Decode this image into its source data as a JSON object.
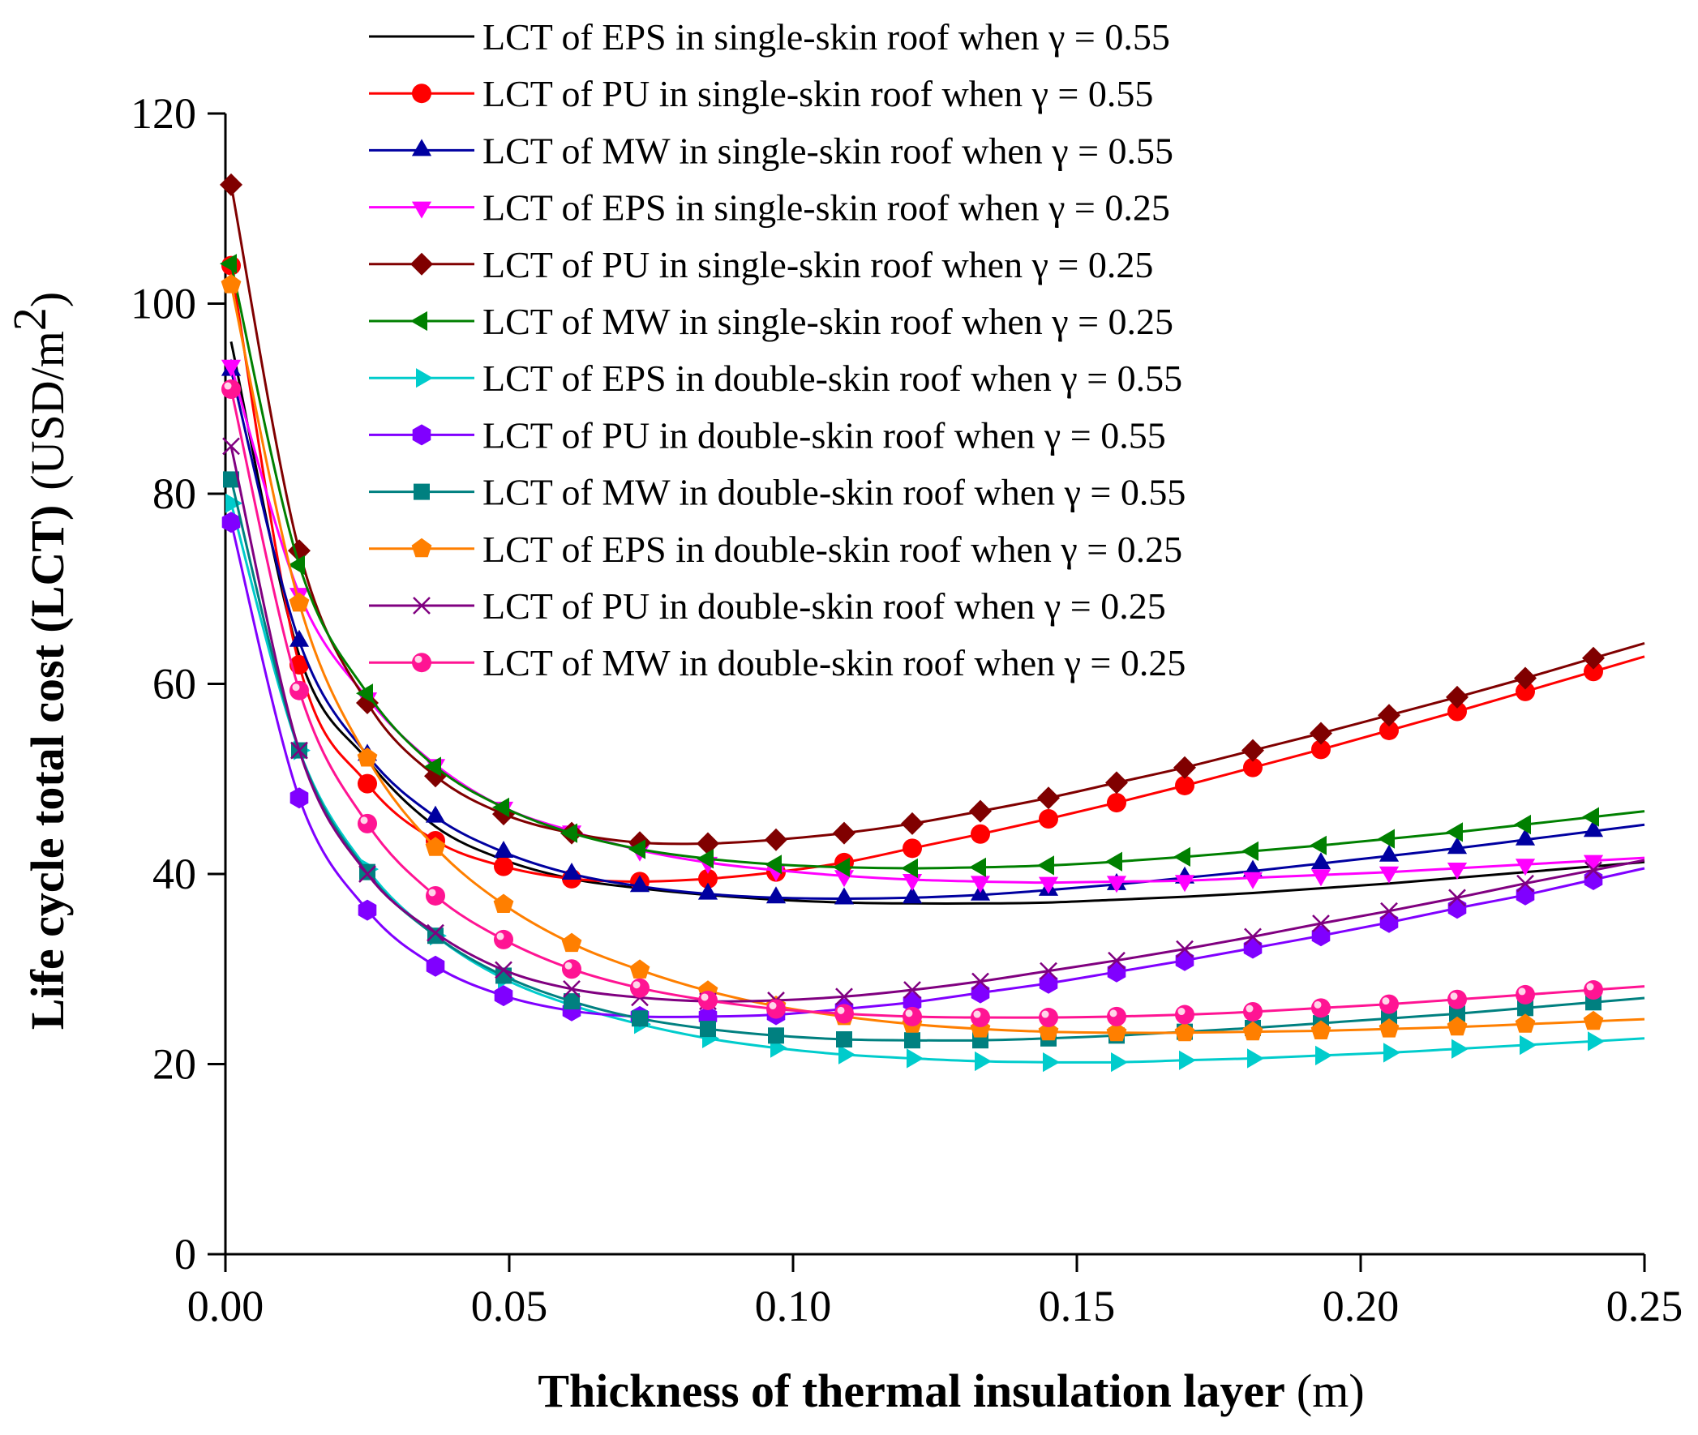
{
  "chart_data": {
    "type": "line",
    "xlabel": "Thickness of thermal insulation layer",
    "xunit": "(m)",
    "ylabel": "Life cycle total cost (LCT)",
    "yunit": "(USD/m",
    "yunit_sup": "2",
    "yunit_close": ")",
    "xlim": [
      0,
      0.25
    ],
    "ylim": [
      0,
      120
    ],
    "xticks": [
      0,
      0.05,
      0.1,
      0.15,
      0.2,
      0.25
    ],
    "xtick_labels": [
      "0.00",
      "0.05",
      "0.10",
      "0.15",
      "0.20",
      "0.25"
    ],
    "yticks": [
      0,
      20,
      40,
      60,
      80,
      100,
      120
    ],
    "ytick_labels": [
      "0",
      "20",
      "40",
      "60",
      "80",
      "100",
      "120"
    ],
    "legend_position": "top-right",
    "marker_x": [
      0.001,
      0.013,
      0.025,
      0.037,
      0.049,
      0.061,
      0.073,
      0.085,
      0.097,
      0.109,
      0.121,
      0.133,
      0.145,
      0.157,
      0.169,
      0.181,
      0.193,
      0.205,
      0.217,
      0.229,
      0.241
    ],
    "series": [
      {
        "name": "LCT of  EPS in single-skin roof when γ = 0.55",
        "color": "#000000",
        "marker": "none",
        "values": [
          96,
          63,
          52,
          45,
          41.5,
          39.5,
          38.5,
          37.8,
          37.3,
          37,
          36.9,
          36.9,
          37,
          37.3,
          37.6,
          38,
          38.5,
          39,
          39.6,
          40.2,
          40.8
        ]
      },
      {
        "name": "LCT of  PU in single-skin roof when γ = 0.55",
        "color": "#ff0000",
        "marker": "circle",
        "values": [
          104,
          62,
          49.5,
          43.5,
          40.8,
          39.5,
          39.2,
          39.5,
          40.2,
          41.2,
          42.7,
          44.2,
          45.8,
          47.5,
          49.3,
          51.2,
          53.1,
          55.1,
          57.1,
          59.2,
          61.3
        ]
      },
      {
        "name": "LCT of  MW in single-skin roof when γ = 0.55",
        "color": "#0000a0",
        "marker": "triangle-up",
        "values": [
          93,
          64.5,
          52.5,
          46,
          42.3,
          40,
          38.7,
          37.9,
          37.5,
          37.4,
          37.5,
          37.8,
          38.3,
          38.9,
          39.6,
          40.3,
          41.1,
          41.9,
          42.7,
          43.6,
          44.5
        ]
      },
      {
        "name": "LCT of  EPS in single-skin roof when γ = 0.25",
        "color": "#ff00ff",
        "marker": "triangle-down",
        "values": [
          93.5,
          69.5,
          58.5,
          51.5,
          47,
          44.5,
          42.5,
          41.2,
          40.4,
          39.8,
          39.4,
          39.2,
          39.1,
          39.2,
          39.3,
          39.6,
          39.9,
          40.2,
          40.6,
          41.0,
          41.4
        ]
      },
      {
        "name": "LCT of  PU in single-skin roof when γ = 0.25",
        "color": "#800000",
        "marker": "diamond",
        "values": [
          112.5,
          74,
          58,
          50.3,
          46.3,
          44.3,
          43.3,
          43.2,
          43.6,
          44.3,
          45.3,
          46.6,
          48,
          49.6,
          51.2,
          53,
          54.8,
          56.7,
          58.6,
          60.6,
          62.7
        ]
      },
      {
        "name": "LCT of  MW in single-skin roof when γ = 0.25",
        "color": "#008000",
        "marker": "triangle-left",
        "values": [
          104.2,
          72.5,
          59,
          51.3,
          47,
          44.3,
          42.6,
          41.6,
          41,
          40.7,
          40.6,
          40.7,
          40.9,
          41.3,
          41.8,
          42.4,
          43,
          43.7,
          44.4,
          45.2,
          46
        ]
      },
      {
        "name": "LCT of  EPS in double-skin roof when γ = 0.55",
        "color": "#00cccc",
        "marker": "triangle-right",
        "values": [
          79,
          53,
          40.5,
          33.5,
          29,
          26.2,
          24.2,
          22.7,
          21.7,
          21,
          20.6,
          20.3,
          20.2,
          20.2,
          20.4,
          20.6,
          20.9,
          21.2,
          21.6,
          22,
          22.4
        ]
      },
      {
        "name": "LCT of  PU in double-skin roof when γ = 0.55",
        "color": "#8000ff",
        "marker": "hexagon",
        "values": [
          77,
          48,
          36.2,
          30.3,
          27.2,
          25.6,
          25,
          25,
          25.2,
          25.8,
          26.5,
          27.5,
          28.5,
          29.7,
          30.9,
          32.2,
          33.5,
          34.9,
          36.4,
          37.8,
          39.4
        ]
      },
      {
        "name": "LCT of  MW in double-skin roof when γ = 0.55",
        "color": "#008080",
        "marker": "square",
        "values": [
          81.5,
          53,
          40.2,
          33.5,
          29.3,
          26.6,
          24.8,
          23.7,
          23,
          22.6,
          22.5,
          22.5,
          22.7,
          23,
          23.4,
          23.8,
          24.3,
          24.8,
          25.3,
          25.9,
          26.5
        ]
      },
      {
        "name": "LCT of  EPS in double-skin roof when γ = 0.25",
        "color": "#ff7f00",
        "marker": "pentagon",
        "values": [
          102,
          68.5,
          52.2,
          42.8,
          36.8,
          32.7,
          29.9,
          27.7,
          26.1,
          25,
          24.2,
          23.7,
          23.4,
          23.3,
          23.3,
          23.4,
          23.5,
          23.7,
          23.9,
          24.2,
          24.5
        ]
      },
      {
        "name": "LCT of  PU in double-skin roof when γ = 0.25",
        "color": "#800080",
        "marker": "x",
        "values": [
          85,
          53,
          40,
          33.8,
          29.9,
          27.9,
          27,
          26.6,
          26.7,
          27.1,
          27.8,
          28.7,
          29.8,
          30.9,
          32.1,
          33.4,
          34.8,
          36.1,
          37.5,
          39,
          40.4
        ]
      },
      {
        "name": "LCT of  MW in double-skin roof when γ = 0.25",
        "color": "#ff1493",
        "marker": "ball",
        "values": [
          91,
          59.3,
          45.3,
          37.7,
          33.1,
          30,
          28,
          26.7,
          25.8,
          25.3,
          25,
          24.9,
          24.9,
          25,
          25.2,
          25.5,
          25.9,
          26.3,
          26.8,
          27.3,
          27.8
        ]
      }
    ]
  }
}
